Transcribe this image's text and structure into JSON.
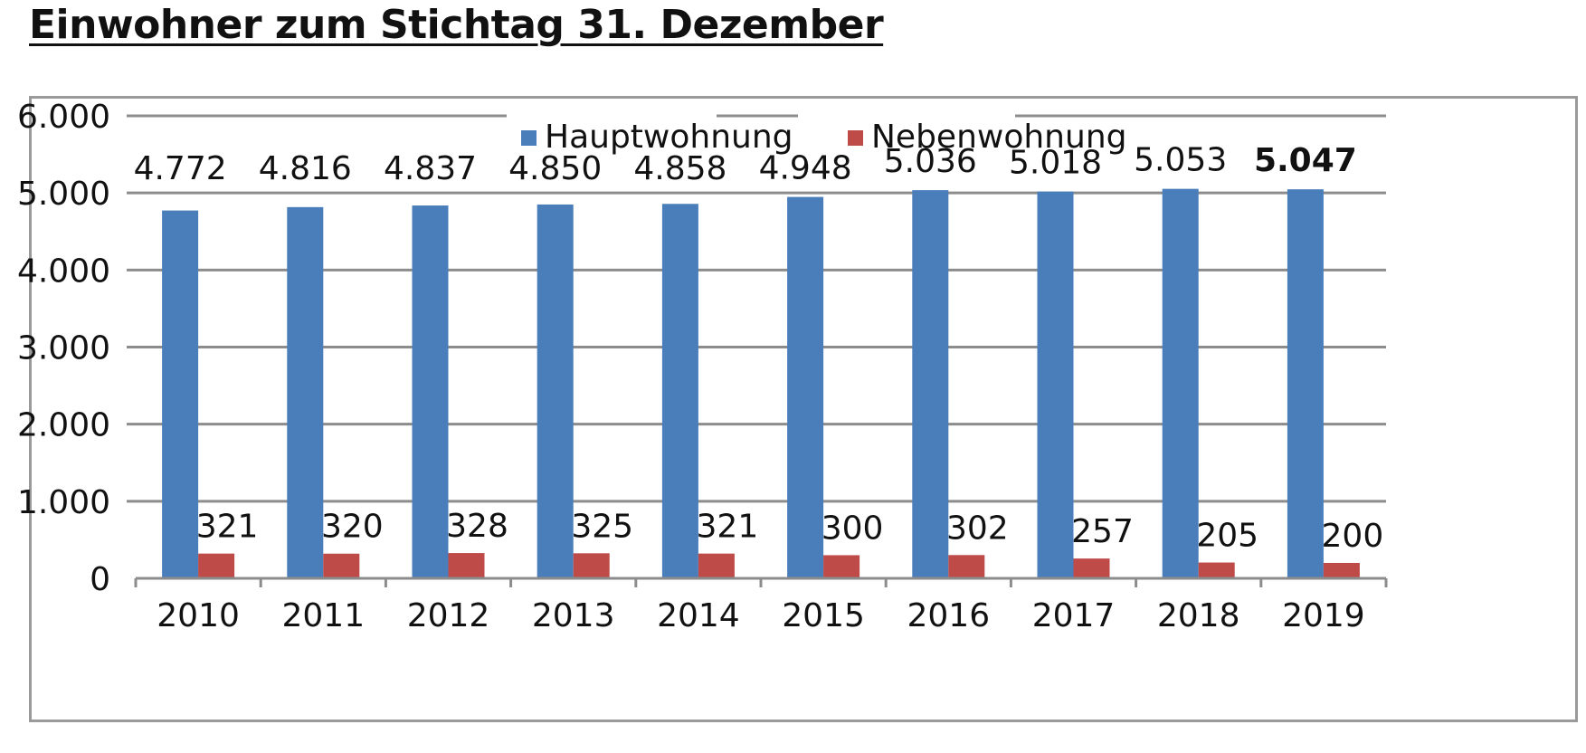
{
  "chart_data": {
    "type": "bar",
    "title": "Einwohner zum Stichtag 31. Dezember",
    "categories": [
      "2010",
      "2011",
      "2012",
      "2013",
      "2014",
      "2015",
      "2016",
      "2017",
      "2018",
      "2019"
    ],
    "series": [
      {
        "name": "Hauptwohnung",
        "color": "#4a7ebb",
        "values": [
          4772,
          4816,
          4837,
          4850,
          4858,
          4948,
          5036,
          5018,
          5053,
          5047
        ],
        "labels": [
          "4.772",
          "4.816",
          "4.837",
          "4.850",
          "4.858",
          "4.948",
          "5.036",
          "5.018",
          "5.053",
          "5.047"
        ]
      },
      {
        "name": "Nebenwohnung",
        "color": "#be4b48",
        "values": [
          321,
          320,
          328,
          325,
          321,
          300,
          302,
          257,
          205,
          200
        ],
        "labels": [
          "321",
          "320",
          "328",
          "325",
          "321",
          "300",
          "302",
          "257",
          "205",
          "200"
        ]
      }
    ],
    "ylim": [
      0,
      6000
    ],
    "yticks": [
      0,
      1000,
      2000,
      3000,
      4000,
      5000,
      6000
    ],
    "ytick_labels": [
      "0",
      "1.000",
      "2.000",
      "3.000",
      "4.000",
      "5.000",
      "6.000"
    ],
    "grid": true,
    "legend_position": "top-center",
    "highlighted_label": "2019"
  }
}
